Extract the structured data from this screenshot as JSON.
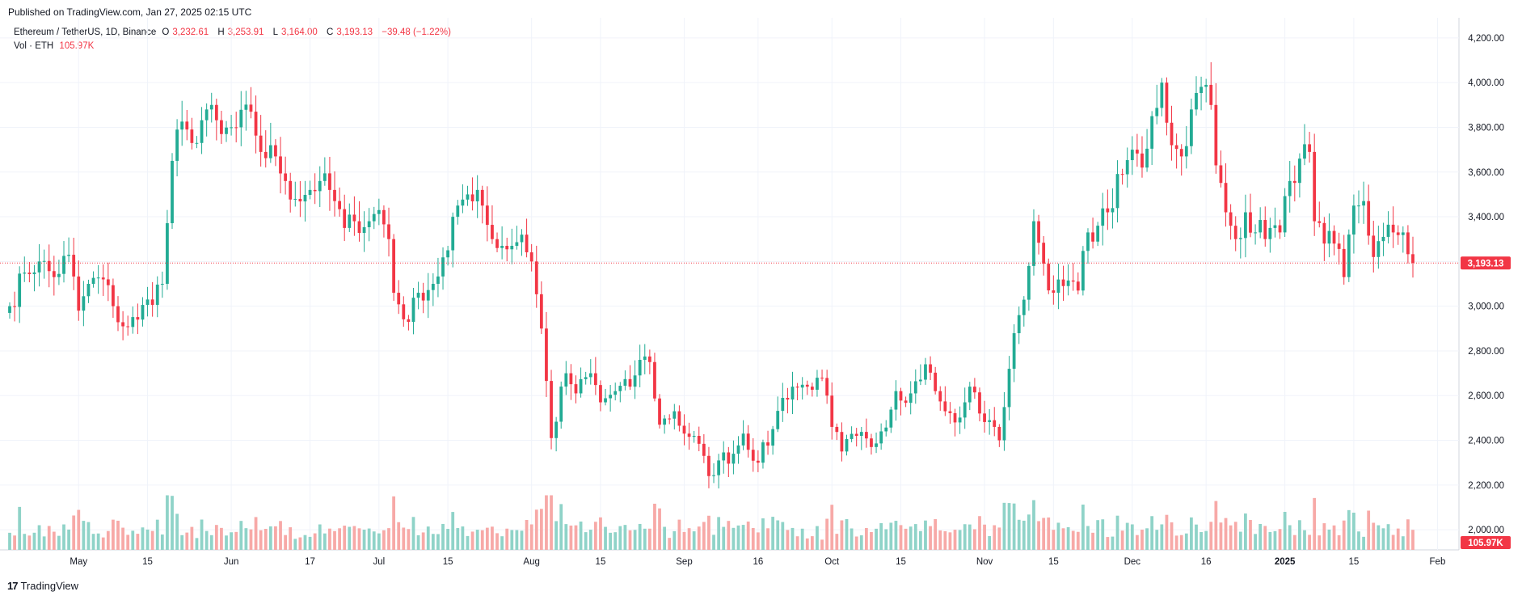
{
  "published": "Published on TradingView.com, Jan 27, 2025 02:15 UTC",
  "legend": {
    "symbol": "Ethereum / TetherUS, 1D, Binance",
    "open_label": "O",
    "open": "3,232.61",
    "high_label": "H",
    "high": "3,253.91",
    "low_label": "L",
    "low": "3,164.00",
    "close_label": "C",
    "close": "3,193.13",
    "change": "−39.48 (−1.22%)",
    "vol_label": "Vol · ETH",
    "vol_value": "105.97K"
  },
  "footer": {
    "logo_mark": "17",
    "logo_text": "TradingView"
  },
  "colors": {
    "up": "#22ab94",
    "down": "#f23645",
    "vol_up": "#8fd3c8",
    "vol_down": "#f7a9a7",
    "grid": "#f0f3fa",
    "axis_text": "#131722"
  },
  "chart_data": {
    "type": "candlestick",
    "title": "Ethereum / TetherUS, 1D, Binance",
    "price_axis": {
      "ticks": [
        2000,
        2200,
        2400,
        2600,
        2800,
        3000,
        3200,
        3400,
        3600,
        3800,
        4000,
        4200
      ],
      "tick_labels": [
        "2,000.00",
        "2,200.00",
        "2,400.00",
        "2,600.00",
        "2,800.00",
        "3,000.00",
        "3,200.00",
        "3,400.00",
        "3,600.00",
        "3,800.00",
        "4,000.00",
        "4,200.00"
      ],
      "range": [
        1910,
        4290
      ]
    },
    "time_axis": {
      "labels": [
        {
          "date": "2024-05-01",
          "text": "May"
        },
        {
          "date": "2024-05-15",
          "text": "15"
        },
        {
          "date": "2024-06-01",
          "text": "Jun"
        },
        {
          "date": "2024-06-17",
          "text": "17"
        },
        {
          "date": "2024-07-01",
          "text": "Jul"
        },
        {
          "date": "2024-07-15",
          "text": "15"
        },
        {
          "date": "2024-08-01",
          "text": "Aug"
        },
        {
          "date": "2024-08-15",
          "text": "15"
        },
        {
          "date": "2024-09-01",
          "text": "Sep"
        },
        {
          "date": "2024-09-16",
          "text": "16"
        },
        {
          "date": "2024-10-01",
          "text": "Oct"
        },
        {
          "date": "2024-10-15",
          "text": "15"
        },
        {
          "date": "2024-11-01",
          "text": "Nov"
        },
        {
          "date": "2024-11-15",
          "text": "15"
        },
        {
          "date": "2024-12-01",
          "text": "Dec"
        },
        {
          "date": "2024-12-16",
          "text": "16"
        },
        {
          "date": "2025-01-01",
          "text": "2025"
        },
        {
          "date": "2025-01-15",
          "text": "15"
        },
        {
          "date": "2025-02-01",
          "text": "Feb"
        }
      ],
      "first_date": "2024-04-17",
      "last_date": "2025-01-27",
      "bold_labels": [
        "2025"
      ]
    },
    "last_price": 3193.13,
    "last_price_label": "3,193.13",
    "last_volume_label": "105.97K",
    "anchors": [
      [
        "2024-04-17",
        3000
      ],
      [
        "2024-04-20",
        3150
      ],
      [
        "2024-04-23",
        3200
      ],
      [
        "2024-04-26",
        3130
      ],
      [
        "2024-04-29",
        3230
      ],
      [
        "2024-05-01",
        2980
      ],
      [
        "2024-05-03",
        3100
      ],
      [
        "2024-05-06",
        3120
      ],
      [
        "2024-05-08",
        3000
      ],
      [
        "2024-05-10",
        2910
      ],
      [
        "2024-05-13",
        2940
      ],
      [
        "2024-05-15",
        3030
      ],
      [
        "2024-05-18",
        3100
      ],
      [
        "2024-05-20",
        3650
      ],
      [
        "2024-05-21",
        3790
      ],
      [
        "2024-05-24",
        3730
      ],
      [
        "2024-05-27",
        3880
      ],
      [
        "2024-05-30",
        3770
      ],
      [
        "2024-06-02",
        3800
      ],
      [
        "2024-06-05",
        3870
      ],
      [
        "2024-06-07",
        3690
      ],
      [
        "2024-06-10",
        3670
      ],
      [
        "2024-06-12",
        3560
      ],
      [
        "2024-06-14",
        3480
      ],
      [
        "2024-06-17",
        3520
      ],
      [
        "2024-06-19",
        3560
      ],
      [
        "2024-06-21",
        3520
      ],
      [
        "2024-06-24",
        3350
      ],
      [
        "2024-06-26",
        3380
      ],
      [
        "2024-06-29",
        3380
      ],
      [
        "2024-07-01",
        3430
      ],
      [
        "2024-07-03",
        3300
      ],
      [
        "2024-07-04",
        3060
      ],
      [
        "2024-07-07",
        2930
      ],
      [
        "2024-07-09",
        3060
      ],
      [
        "2024-07-12",
        3100
      ],
      [
        "2024-07-15",
        3250
      ],
      [
        "2024-07-17",
        3450
      ],
      [
        "2024-07-19",
        3500
      ],
      [
        "2024-07-21",
        3520
      ],
      [
        "2024-07-22",
        3450
      ],
      [
        "2024-07-24",
        3300
      ],
      [
        "2024-07-26",
        3270
      ],
      [
        "2024-07-28",
        3270
      ],
      [
        "2024-07-30",
        3320
      ],
      [
        "2024-08-01",
        3200
      ],
      [
        "2024-08-03",
        2900
      ],
      [
        "2024-08-05",
        2410
      ],
      [
        "2024-08-08",
        2700
      ],
      [
        "2024-08-10",
        2610
      ],
      [
        "2024-08-13",
        2700
      ],
      [
        "2024-08-15",
        2570
      ],
      [
        "2024-08-18",
        2620
      ],
      [
        "2024-08-21",
        2640
      ],
      [
        "2024-08-23",
        2760
      ],
      [
        "2024-08-25",
        2750
      ],
      [
        "2024-08-27",
        2470
      ],
      [
        "2024-08-30",
        2530
      ],
      [
        "2024-09-01",
        2430
      ],
      [
        "2024-09-03",
        2420
      ],
      [
        "2024-09-06",
        2240
      ],
      [
        "2024-09-08",
        2310
      ],
      [
        "2024-09-11",
        2340
      ],
      [
        "2024-09-13",
        2430
      ],
      [
        "2024-09-16",
        2300
      ],
      [
        "2024-09-19",
        2450
      ],
      [
        "2024-09-21",
        2590
      ],
      [
        "2024-09-23",
        2640
      ],
      [
        "2024-09-26",
        2640
      ],
      [
        "2024-09-28",
        2680
      ],
      [
        "2024-09-30",
        2600
      ],
      [
        "2024-10-01",
        2460
      ],
      [
        "2024-10-03",
        2350
      ],
      [
        "2024-10-06",
        2420
      ],
      [
        "2024-10-09",
        2370
      ],
      [
        "2024-10-11",
        2440
      ],
      [
        "2024-10-14",
        2620
      ],
      [
        "2024-10-17",
        2610
      ],
      [
        "2024-10-20",
        2740
      ],
      [
        "2024-10-22",
        2620
      ],
      [
        "2024-10-24",
        2530
      ],
      [
        "2024-10-26",
        2480
      ],
      [
        "2024-10-28",
        2570
      ],
      [
        "2024-10-29",
        2640
      ],
      [
        "2024-10-31",
        2520
      ],
      [
        "2024-11-02",
        2490
      ],
      [
        "2024-11-03",
        2460
      ],
      [
        "2024-11-04",
        2400
      ],
      [
        "2024-11-06",
        2720
      ],
      [
        "2024-11-08",
        2960
      ],
      [
        "2024-11-10",
        3180
      ],
      [
        "2024-11-11",
        3380
      ],
      [
        "2024-11-13",
        3190
      ],
      [
        "2024-11-15",
        3060
      ],
      [
        "2024-11-17",
        3090
      ],
      [
        "2024-11-19",
        3110
      ],
      [
        "2024-11-20",
        3070
      ],
      [
        "2024-11-22",
        3330
      ],
      [
        "2024-11-24",
        3360
      ],
      [
        "2024-11-26",
        3420
      ],
      [
        "2024-11-29",
        3590
      ],
      [
        "2024-12-01",
        3700
      ],
      [
        "2024-12-03",
        3620
      ],
      [
        "2024-12-05",
        3850
      ],
      [
        "2024-12-07",
        4000
      ],
      [
        "2024-12-09",
        3720
      ],
      [
        "2024-12-11",
        3670
      ],
      [
        "2024-12-13",
        3880
      ],
      [
        "2024-12-16",
        3990
      ],
      [
        "2024-12-17",
        3900
      ],
      [
        "2024-12-18",
        3630
      ],
      [
        "2024-12-20",
        3420
      ],
      [
        "2024-12-22",
        3300
      ],
      [
        "2024-12-24",
        3420
      ],
      [
        "2024-12-26",
        3330
      ],
      [
        "2024-12-29",
        3350
      ],
      [
        "2024-12-31",
        3330
      ],
      [
        "2025-01-02",
        3560
      ],
      [
        "2025-01-04",
        3660
      ],
      [
        "2025-01-06",
        3690
      ],
      [
        "2025-01-07",
        3380
      ],
      [
        "2025-01-09",
        3280
      ],
      [
        "2025-01-11",
        3280
      ],
      [
        "2025-01-13",
        3130
      ],
      [
        "2025-01-15",
        3450
      ],
      [
        "2025-01-17",
        3470
      ],
      [
        "2025-01-19",
        3220
      ],
      [
        "2025-01-21",
        3310
      ],
      [
        "2025-01-23",
        3330
      ],
      [
        "2025-01-25",
        3330
      ],
      [
        "2025-01-26",
        3232.61
      ],
      [
        "2025-01-27",
        3193.13
      ]
    ],
    "volume_axis": {
      "range": [
        0,
        1.0
      ],
      "units": "relative"
    }
  }
}
